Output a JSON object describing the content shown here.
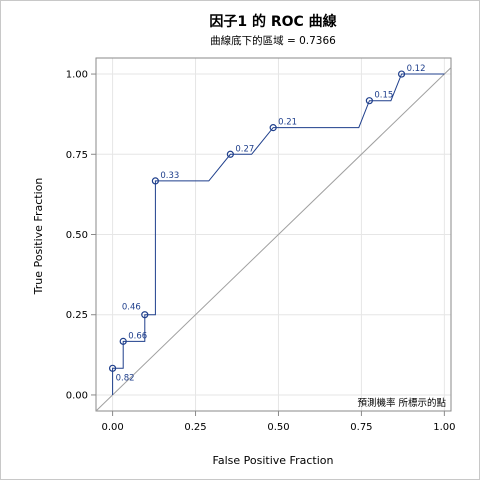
{
  "chart_data": {
    "type": "line",
    "title": "因子1 的 ROC 曲線",
    "subtitle": "曲線底下的區域 = 0.7366",
    "xlabel": "False Positive Fraction",
    "ylabel": "True Positive Fraction",
    "xlim": [
      -0.05,
      1.02
    ],
    "ylim": [
      -0.05,
      1.05
    ],
    "x_ticks": [
      "0.00",
      "0.25",
      "0.50",
      "0.75",
      "1.00"
    ],
    "x_tick_values": [
      0,
      0.25,
      0.5,
      0.75,
      1.0
    ],
    "y_ticks": [
      "0.00",
      "0.25",
      "0.50",
      "0.75",
      "1.00"
    ],
    "y_tick_values": [
      0,
      0.25,
      0.5,
      0.75,
      1.0
    ],
    "grid": true,
    "legend_text": "預測機率 所標示的點",
    "legend_position": "bottom-right",
    "colors": {
      "curve": "#1f3f8c",
      "diagonal": "#a0a0a0",
      "grid": "#e6e6e6",
      "axis": "#8a8a8a"
    },
    "series": [
      {
        "curve": [
          [
            0,
            0
          ],
          [
            0,
            0.083
          ],
          [
            0.032,
            0.083
          ],
          [
            0.032,
            0.167
          ],
          [
            0.097,
            0.167
          ],
          [
            0.097,
            0.25
          ],
          [
            0.129,
            0.25
          ],
          [
            0.129,
            0.667
          ],
          [
            0.29,
            0.667
          ],
          [
            0.355,
            0.75
          ],
          [
            0.419,
            0.75
          ],
          [
            0.484,
            0.833
          ],
          [
            0.742,
            0.833
          ],
          [
            0.774,
            0.917
          ],
          [
            0.839,
            0.917
          ],
          [
            0.871,
            1.0
          ],
          [
            1.0,
            1.0
          ]
        ]
      },
      {
        "diagonal": [
          [
            0,
            0
          ],
          [
            1,
            1
          ]
        ]
      }
    ],
    "points": [
      {
        "x": 0.0,
        "y": 0.083,
        "label": "0.82",
        "label_pos": "below-right"
      },
      {
        "x": 0.032,
        "y": 0.167,
        "label": "0.66",
        "label_pos": "right"
      },
      {
        "x": 0.097,
        "y": 0.25,
        "label": "0.46",
        "label_pos": "above-left"
      },
      {
        "x": 0.129,
        "y": 0.667,
        "label": "0.33",
        "label_pos": "right"
      },
      {
        "x": 0.355,
        "y": 0.75,
        "label": "0.27",
        "label_pos": "right"
      },
      {
        "x": 0.484,
        "y": 0.833,
        "label": "0.21",
        "label_pos": "right"
      },
      {
        "x": 0.774,
        "y": 0.917,
        "label": "0.15",
        "label_pos": "right"
      },
      {
        "x": 0.871,
        "y": 1.0,
        "label": "0.12",
        "label_pos": "right"
      }
    ]
  }
}
